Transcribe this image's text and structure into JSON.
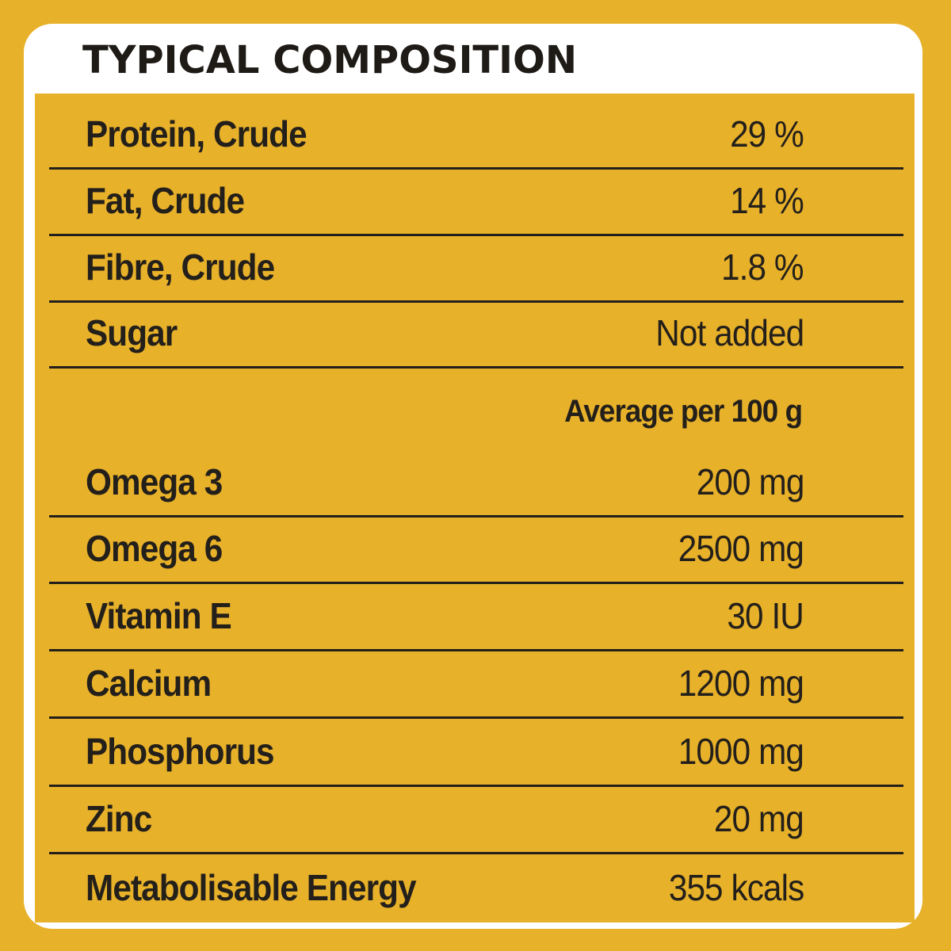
{
  "title": "TYPICAL COMPOSITION",
  "table": {
    "rows_top": [
      {
        "label": "Protein, Crude",
        "value": "29 %"
      },
      {
        "label": "Fat, Crude",
        "value": "14 %"
      },
      {
        "label": "Fibre, Crude",
        "value": "1.8 %"
      },
      {
        "label": "Sugar",
        "value": "Not added"
      }
    ],
    "subheader": "Average per 100 g",
    "rows_bottom": [
      {
        "label": "Omega 3",
        "value": "200 mg"
      },
      {
        "label": "Omega 6",
        "value": "2500 mg"
      },
      {
        "label": "Vitamin E",
        "value": "30 IU"
      },
      {
        "label": "Calcium",
        "value": "1200 mg"
      },
      {
        "label": "Phosphorus",
        "value": "1000 mg"
      },
      {
        "label": "Zinc",
        "value": "20 mg"
      },
      {
        "label": "Metabolisable Energy",
        "value": "355 kcals"
      }
    ]
  },
  "colors": {
    "background": "#e8b12a",
    "panel": "#ffffff",
    "text": "#231f1a"
  }
}
